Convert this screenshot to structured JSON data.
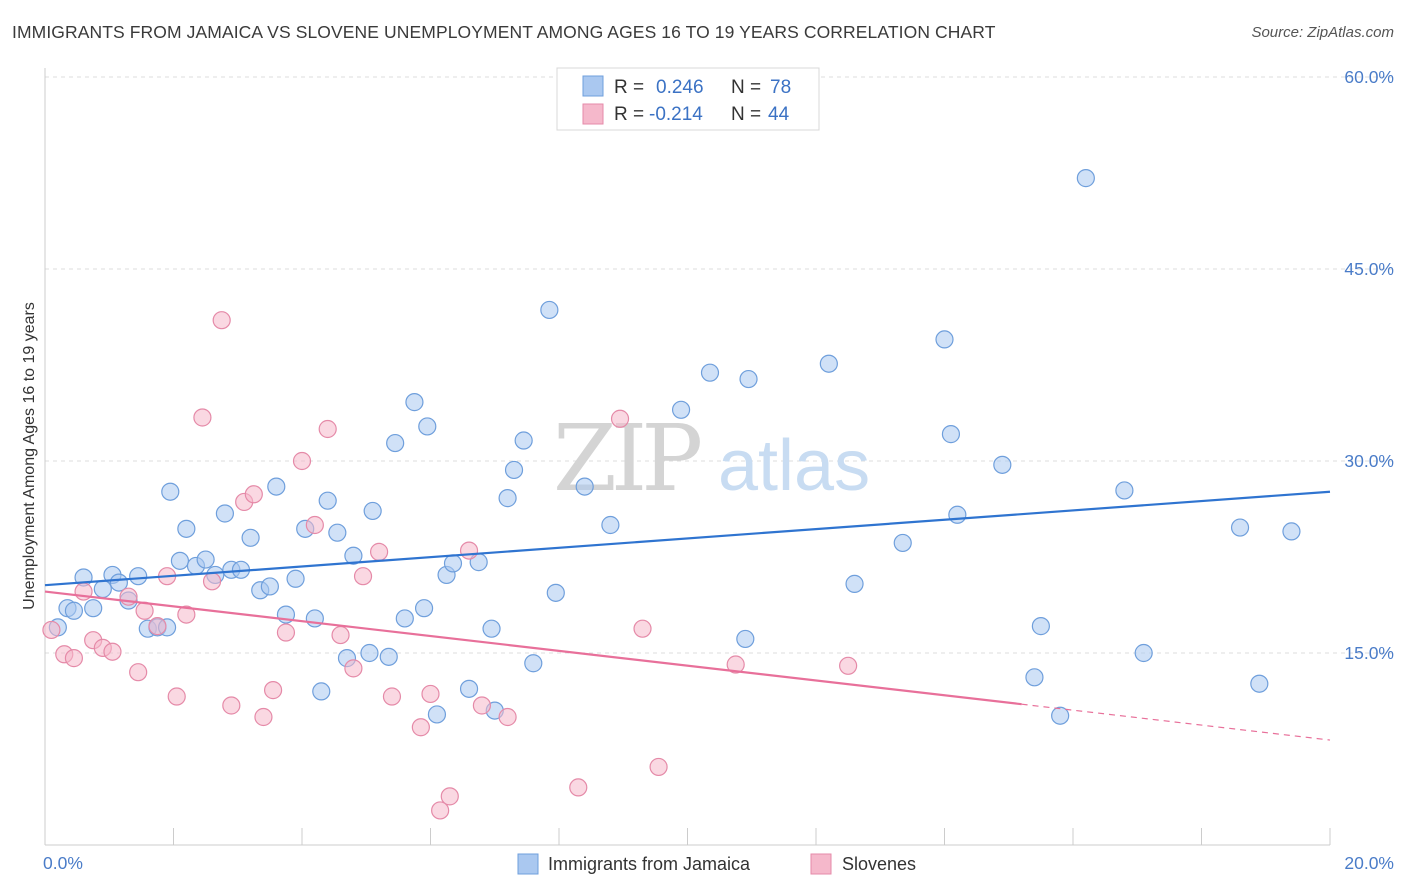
{
  "title": "IMMIGRANTS FROM JAMAICA VS SLOVENE UNEMPLOYMENT AMONG AGES 16 TO 19 YEARS CORRELATION CHART",
  "source": "Source: ZipAtlas.com",
  "watermark": {
    "zip": "ZIP",
    "atlas": "atlas"
  },
  "colors": {
    "blue_fill": "#aac8f0",
    "blue_stroke": "#6f9fdc",
    "blue_line": "#2f74d0",
    "pink_fill": "#f5b8cb",
    "pink_stroke": "#e58aa8",
    "pink_line": "#e8709a",
    "tick_text": "#4a7cc8",
    "grid": "#dddddd"
  },
  "legend": {
    "rows": [
      {
        "r_label": "R =",
        "r_value": "0.246",
        "n_label": "N =",
        "n_value": "78"
      },
      {
        "r_label": "R =",
        "r_value": "-0.214",
        "n_label": "N =",
        "n_value": "44"
      }
    ]
  },
  "bottom_legend": [
    "Immigrants from Jamaica",
    "Slovenes"
  ],
  "chart_data": {
    "type": "scatter",
    "title": "IMMIGRANTS FROM JAMAICA VS SLOVENE UNEMPLOYMENT AMONG AGES 16 TO 19 YEARS CORRELATION CHART",
    "xlabel": "",
    "ylabel": "Unemployment Among Ages 16 to 19 years",
    "xlim": [
      0,
      20
    ],
    "ylim": [
      0,
      60
    ],
    "x_tick_labels": [
      "0.0%",
      "20.0%"
    ],
    "y_tick_labels": [
      "15.0%",
      "30.0%",
      "45.0%",
      "60.0%"
    ],
    "y_ticks": [
      15,
      30,
      45,
      60
    ],
    "grid": true,
    "legend_position": "top-center",
    "series": [
      {
        "name": "Immigrants from Jamaica",
        "color": "#aac8f0",
        "R": 0.246,
        "N": 78,
        "trend": {
          "x": [
            0,
            20
          ],
          "y": [
            20.3,
            27.6
          ]
        },
        "points": [
          [
            0.2,
            17.0
          ],
          [
            0.35,
            18.5
          ],
          [
            0.45,
            18.3
          ],
          [
            0.6,
            20.9
          ],
          [
            0.75,
            18.5
          ],
          [
            0.9,
            20.0
          ],
          [
            1.05,
            21.1
          ],
          [
            1.15,
            20.5
          ],
          [
            1.3,
            19.1
          ],
          [
            1.45,
            21.0
          ],
          [
            1.6,
            16.9
          ],
          [
            1.75,
            17.0
          ],
          [
            1.9,
            17.0
          ],
          [
            1.95,
            27.6
          ],
          [
            2.1,
            22.2
          ],
          [
            2.2,
            24.7
          ],
          [
            2.35,
            21.8
          ],
          [
            2.5,
            22.3
          ],
          [
            2.65,
            21.1
          ],
          [
            2.8,
            25.9
          ],
          [
            2.9,
            21.5
          ],
          [
            3.05,
            21.5
          ],
          [
            3.2,
            24.0
          ],
          [
            3.35,
            19.9
          ],
          [
            3.5,
            20.2
          ],
          [
            3.6,
            28.0
          ],
          [
            3.75,
            18.0
          ],
          [
            3.9,
            20.8
          ],
          [
            4.05,
            24.7
          ],
          [
            4.2,
            17.7
          ],
          [
            4.3,
            12.0
          ],
          [
            4.4,
            26.9
          ],
          [
            4.55,
            24.4
          ],
          [
            4.7,
            14.6
          ],
          [
            4.8,
            22.6
          ],
          [
            5.05,
            15.0
          ],
          [
            5.1,
            26.1
          ],
          [
            5.35,
            14.7
          ],
          [
            5.45,
            31.4
          ],
          [
            5.6,
            17.7
          ],
          [
            5.75,
            34.6
          ],
          [
            5.9,
            18.5
          ],
          [
            5.95,
            32.7
          ],
          [
            6.1,
            10.2
          ],
          [
            6.25,
            21.1
          ],
          [
            6.35,
            22.0
          ],
          [
            6.6,
            12.2
          ],
          [
            6.75,
            22.1
          ],
          [
            6.95,
            16.9
          ],
          [
            7.0,
            10.5
          ],
          [
            7.2,
            27.1
          ],
          [
            7.3,
            29.3
          ],
          [
            7.45,
            31.6
          ],
          [
            7.6,
            14.2
          ],
          [
            7.85,
            41.8
          ],
          [
            7.95,
            19.7
          ],
          [
            8.4,
            28.0
          ],
          [
            8.8,
            25.0
          ],
          [
            9.9,
            34.0
          ],
          [
            10.35,
            36.9
          ],
          [
            10.9,
            16.1
          ],
          [
            10.95,
            36.4
          ],
          [
            12.2,
            37.6
          ],
          [
            12.6,
            20.4
          ],
          [
            14.0,
            39.5
          ],
          [
            14.1,
            32.1
          ],
          [
            14.2,
            25.8
          ],
          [
            14.9,
            29.7
          ],
          [
            15.4,
            13.1
          ],
          [
            15.5,
            17.1
          ],
          [
            15.8,
            10.1
          ],
          [
            16.2,
            52.1
          ],
          [
            16.8,
            27.7
          ],
          [
            17.1,
            15.0
          ],
          [
            18.6,
            24.8
          ],
          [
            18.9,
            12.6
          ],
          [
            19.4,
            24.5
          ],
          [
            13.35,
            23.6
          ]
        ]
      },
      {
        "name": "Slovenes",
        "color": "#f5b8cb",
        "R": -0.214,
        "N": 44,
        "trend": {
          "x": [
            0,
            15.2
          ],
          "y": [
            19.8,
            11.0
          ]
        },
        "trend_dashed": {
          "x": [
            15.2,
            20
          ],
          "y": [
            11.0,
            8.2
          ]
        },
        "points": [
          [
            0.1,
            16.8
          ],
          [
            0.3,
            14.9
          ],
          [
            0.45,
            14.6
          ],
          [
            0.6,
            19.8
          ],
          [
            0.75,
            16.0
          ],
          [
            0.9,
            15.4
          ],
          [
            1.05,
            15.1
          ],
          [
            1.3,
            19.4
          ],
          [
            1.45,
            13.5
          ],
          [
            1.55,
            18.3
          ],
          [
            1.75,
            17.1
          ],
          [
            1.9,
            21.0
          ],
          [
            2.05,
            11.6
          ],
          [
            2.2,
            18.0
          ],
          [
            2.45,
            33.4
          ],
          [
            2.6,
            20.6
          ],
          [
            2.75,
            41.0
          ],
          [
            2.9,
            10.9
          ],
          [
            3.1,
            26.8
          ],
          [
            3.25,
            27.4
          ],
          [
            3.4,
            10.0
          ],
          [
            3.55,
            12.1
          ],
          [
            3.75,
            16.6
          ],
          [
            4.0,
            30.0
          ],
          [
            4.2,
            25.0
          ],
          [
            4.4,
            32.5
          ],
          [
            4.6,
            16.4
          ],
          [
            4.8,
            13.8
          ],
          [
            4.95,
            21.0
          ],
          [
            5.2,
            22.9
          ],
          [
            5.4,
            11.6
          ],
          [
            5.85,
            9.2
          ],
          [
            6.0,
            11.8
          ],
          [
            6.15,
            2.7
          ],
          [
            6.3,
            3.8
          ],
          [
            6.6,
            23.0
          ],
          [
            6.8,
            10.9
          ],
          [
            7.2,
            10.0
          ],
          [
            8.3,
            4.5
          ],
          [
            8.95,
            33.3
          ],
          [
            9.3,
            16.9
          ],
          [
            9.55,
            6.1
          ],
          [
            10.75,
            14.1
          ],
          [
            12.5,
            14.0
          ]
        ]
      }
    ]
  }
}
